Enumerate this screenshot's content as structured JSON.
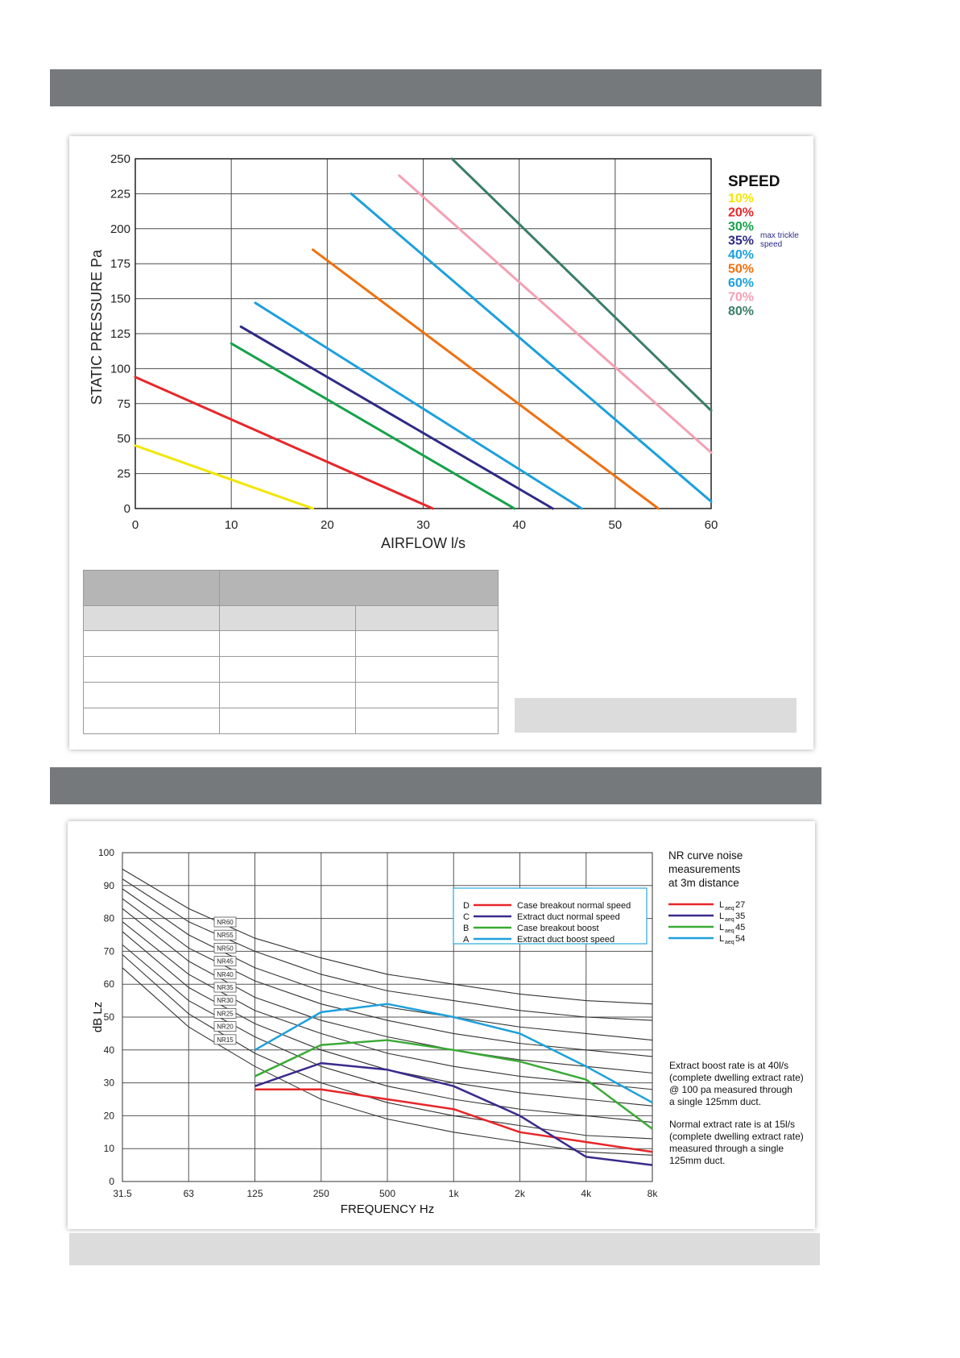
{
  "chart_data": [
    {
      "type": "line",
      "xlabel": "AIRFLOW l/s",
      "ylabel": "STATIC PRESSURE Pa",
      "xlim": [
        0,
        60
      ],
      "ylim": [
        0,
        250
      ],
      "xticks": [
        "0",
        "10",
        "20",
        "30",
        "40",
        "50",
        "60"
      ],
      "yticks": [
        "0",
        "25",
        "50",
        "75",
        "100",
        "125",
        "150",
        "175",
        "200",
        "225",
        "250"
      ],
      "grid": true,
      "legend": {
        "title": "SPEED",
        "placement": "right",
        "note": "max trickle speed"
      },
      "series": [
        {
          "name": "10%",
          "color": "#f2e600",
          "points": [
            [
              0,
              45
            ],
            [
              18.5,
              0
            ]
          ]
        },
        {
          "name": "20%",
          "color": "#e8262a",
          "points": [
            [
              0,
              94
            ],
            [
              31,
              0
            ]
          ]
        },
        {
          "name": "30%",
          "color": "#16a24a",
          "points": [
            [
              10,
              118
            ],
            [
              39.5,
              0
            ]
          ]
        },
        {
          "name": "35%",
          "color": "#2e2a86",
          "points": [
            [
              11,
              130
            ],
            [
              43.5,
              0
            ]
          ]
        },
        {
          "name": "40%",
          "color": "#1ca0dc",
          "points": [
            [
              12.5,
              147
            ],
            [
              46.5,
              0
            ]
          ]
        },
        {
          "name": "50%",
          "color": "#f07010",
          "points": [
            [
              18.5,
              185
            ],
            [
              54.5,
              0
            ]
          ]
        },
        {
          "name": "60%",
          "color": "#1ca0dc",
          "points": [
            [
              22.5,
              225
            ],
            [
              60,
              5
            ]
          ]
        },
        {
          "name": "70%",
          "color": "#f4a0b4",
          "points": [
            [
              27.5,
              238
            ],
            [
              60,
              40
            ]
          ]
        },
        {
          "name": "80%",
          "color": "#3a7e68",
          "points": [
            [
              33,
              250
            ],
            [
              60,
              70
            ]
          ]
        }
      ]
    },
    {
      "type": "line",
      "xlabel": "FREQUENCY Hz",
      "ylabel": "dB Lz",
      "categories": [
        "31.5",
        "63",
        "125",
        "250",
        "500",
        "1k",
        "2k",
        "4k",
        "8k"
      ],
      "ylim": [
        0,
        100
      ],
      "yticks": [
        "0",
        "10",
        "20",
        "30",
        "40",
        "50",
        "60",
        "70",
        "80",
        "90",
        "100"
      ],
      "grid": true,
      "title_note": [
        "NR curve noise",
        "measurements",
        "at 3m distance"
      ],
      "nr_curves": [
        {
          "label": "NR60",
          "values": [
            95,
            83,
            74,
            68,
            63,
            60,
            57,
            55,
            54
          ]
        },
        {
          "label": "NR55",
          "values": [
            92,
            79,
            70,
            63,
            58,
            55,
            52,
            50,
            49
          ]
        },
        {
          "label": "NR50",
          "values": [
            89,
            75,
            65,
            58,
            53,
            50,
            47,
            45,
            43
          ]
        },
        {
          "label": "NR45",
          "values": [
            86,
            71,
            61,
            54,
            49,
            45,
            42,
            40,
            38
          ]
        },
        {
          "label": "NR40",
          "values": [
            83,
            67,
            56,
            49,
            44,
            40,
            37,
            35,
            33
          ]
        },
        {
          "label": "NR35",
          "values": [
            79,
            63,
            52,
            45,
            39,
            35,
            32,
            30,
            28
          ]
        },
        {
          "label": "NR30",
          "values": [
            76,
            59,
            48,
            40,
            34,
            30,
            27,
            25,
            23
          ]
        },
        {
          "label": "NR25",
          "values": [
            72,
            55,
            44,
            35,
            29,
            25,
            22,
            20,
            18
          ]
        },
        {
          "label": "NR20",
          "values": [
            69,
            51,
            39,
            30,
            24,
            20,
            17,
            14,
            13
          ]
        },
        {
          "label": "NR15",
          "values": [
            65,
            47,
            35,
            25,
            19,
            15,
            12,
            9,
            8
          ]
        }
      ],
      "series": [
        {
          "key": "D",
          "name": "Case breakout normal speed",
          "color": "#e8262a",
          "level": "27",
          "x": [
            "125",
            "250",
            "500",
            "1k",
            "2k",
            "4k",
            "8k"
          ],
          "values": [
            28,
            28,
            25,
            22,
            15,
            12,
            9
          ]
        },
        {
          "key": "C",
          "name": "Extract duct normal speed",
          "color": "#3a2a8c",
          "level": "35",
          "x": [
            "125",
            "250",
            "500",
            "1k",
            "2k",
            "4k",
            "8k"
          ],
          "values": [
            29,
            36,
            34,
            29,
            20,
            7.5,
            5
          ]
        },
        {
          "key": "B",
          "name": "Case  breakout boost",
          "color": "#3aaa35",
          "level": "45",
          "x": [
            "125",
            "250",
            "500",
            "1k",
            "2k",
            "4k",
            "8k"
          ],
          "values": [
            32,
            41.5,
            43,
            40,
            36.5,
            31,
            16
          ]
        },
        {
          "key": "A",
          "name": "Extract duct boost speed",
          "color": "#1ea0dc",
          "level": "54",
          "x": [
            "125",
            "250",
            "500",
            "1k",
            "2k",
            "4k",
            "8k"
          ],
          "values": [
            40,
            51.5,
            54,
            50,
            45,
            35,
            24
          ]
        }
      ],
      "leq_prefix": "L",
      "leq_sub": "aeq",
      "notes": [
        [
          "Extract boost rate is at 40l/s",
          "(complete dwelling extract rate)",
          "@ 100 pa measured through",
          "a single 125mm duct."
        ],
        [
          "Normal extract rate is at 15l/s",
          "(complete dwelling extract rate)",
          "measured through a single",
          "125mm duct."
        ]
      ]
    }
  ]
}
